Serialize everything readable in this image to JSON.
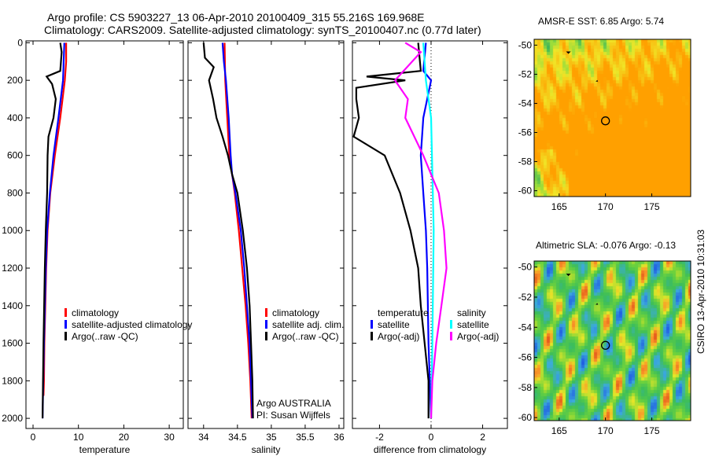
{
  "title": {
    "line1": "Argo profile: CS 5903227_13 06-Apr-2010 20100409_315 55.216S 169.968E",
    "line2": "Climatology: CARS2009. Satellite-adjusted climatology: synTS_20100407.nc (0.77d later)"
  },
  "stamp": "CSIRO 13-Apr-2010 10:31:03",
  "colors": {
    "climatology": "#ff0000",
    "satellite": "#0000ff",
    "argo": "#000000",
    "sal_satellite": "#00ffff",
    "sal_argo": "#ff00ff"
  },
  "chart_data": [
    {
      "type": "line",
      "id": "temperature",
      "xlabel": "temperature",
      "ylabel": "",
      "xlim": [
        -1.56,
        33.1
      ],
      "ylim": [
        2054,
        -10
      ],
      "xticks": [
        0,
        10,
        20,
        30
      ],
      "yticks": [
        0,
        200,
        400,
        600,
        800,
        1000,
        1200,
        1400,
        1600,
        1800,
        2000
      ],
      "legend": [
        "climatology",
        "satellite-adjusted climatology",
        "Argo(..raw -QC)"
      ],
      "series": [
        {
          "name": "climatology",
          "color": "#ff0000",
          "depth": [
            0,
            100,
            200,
            400,
            600,
            800,
            1000,
            1200,
            1400,
            1600,
            1800,
            1880
          ],
          "values": [
            7.3,
            7.3,
            7.0,
            6.0,
            4.8,
            3.8,
            3.2,
            2.9,
            2.7,
            2.5,
            2.4,
            2.3
          ]
        },
        {
          "name": "satellite-adjusted climatology",
          "color": "#0000ff",
          "depth": [
            0,
            200,
            400,
            600,
            800,
            1000,
            1200,
            1600,
            2000
          ],
          "values": [
            6.9,
            6.6,
            5.6,
            4.5,
            3.7,
            3.1,
            2.8,
            2.4,
            2.1
          ]
        },
        {
          "name": "Argo(..raw -QC)",
          "color": "#000000",
          "depth": [
            0,
            50,
            150,
            180,
            220,
            300,
            400,
            500,
            600,
            800,
            1000,
            1200,
            1600,
            2000
          ],
          "values": [
            6.0,
            6.3,
            6.0,
            3.0,
            4.2,
            5.0,
            4.5,
            3.4,
            3.2,
            3.1,
            2.8,
            2.6,
            2.3,
            2.1
          ]
        }
      ]
    },
    {
      "type": "line",
      "id": "salinity",
      "xlabel": "salinity",
      "xlim": [
        33.77,
        36.07
      ],
      "ylim": [
        2054,
        -10
      ],
      "xticks": [
        34,
        34.5,
        35,
        35.5,
        36
      ],
      "legend": [
        "climatology",
        "satellite adj. clim.",
        "Argo(..raw -QC)"
      ],
      "annotation": [
        "Argo AUSTRALIA",
        "PI: Susan Wijffels"
      ],
      "series": [
        {
          "name": "climatology",
          "color": "#ff0000",
          "depth": [
            0,
            200,
            400,
            600,
            700,
            800,
            1000,
            1200,
            1400,
            1600,
            1800,
            2000
          ],
          "values": [
            34.31,
            34.32,
            34.35,
            34.38,
            34.42,
            34.46,
            34.52,
            34.57,
            34.62,
            34.66,
            34.69,
            34.71
          ]
        },
        {
          "name": "satellite adj. clim.",
          "color": "#0000ff",
          "depth": [
            0,
            100,
            200,
            400,
            600,
            700,
            800,
            1000,
            1200,
            1400,
            1600,
            2000
          ],
          "values": [
            34.28,
            34.3,
            34.33,
            34.37,
            34.4,
            34.42,
            34.47,
            34.55,
            34.6,
            34.64,
            34.68,
            34.72
          ]
        },
        {
          "name": "Argo(..raw -QC)",
          "color": "#000000",
          "depth": [
            0,
            80,
            130,
            200,
            300,
            400,
            500,
            600,
            700,
            800,
            1000,
            1200,
            1400,
            1600,
            1800,
            2000
          ],
          "values": [
            34.0,
            34.02,
            34.15,
            34.08,
            34.14,
            34.19,
            34.28,
            34.36,
            34.42,
            34.5,
            34.58,
            34.64,
            34.68,
            34.7,
            34.72,
            34.73
          ]
        }
      ]
    },
    {
      "type": "line",
      "id": "difference",
      "xlabel": "difference from climatology",
      "xlim": [
        -3.05,
        2.96
      ],
      "ylim": [
        2054,
        -10
      ],
      "xticks": [
        -2,
        0,
        2
      ],
      "legend_left": {
        "title": "temperature",
        "items": [
          "satellite",
          "Argo(-adj)"
        ]
      },
      "legend_right": {
        "title": "salinity",
        "items": [
          "satellite",
          "Argo(-adj)"
        ]
      },
      "series": [
        {
          "name": "temperature satellite",
          "color": "#0000ff",
          "depth": [
            0,
            150,
            200,
            400,
            600,
            800,
            1000,
            1200,
            1600,
            2000
          ],
          "values": [
            -0.2,
            -0.3,
            0,
            -0.3,
            -0.4,
            -0.3,
            -0.2,
            -0.15,
            -0.1,
            0
          ]
        },
        {
          "name": "temperature Argo(-adj)",
          "color": "#000000",
          "depth": [
            0,
            150,
            180,
            200,
            240,
            300,
            400,
            500,
            600,
            800,
            1000,
            1200,
            1400,
            1800,
            2000
          ],
          "values": [
            -0.5,
            -0.4,
            -2.5,
            -1.0,
            -2.9,
            -2.9,
            -2.8,
            -3.0,
            -1.8,
            -1.2,
            -0.8,
            -0.5,
            -0.4,
            -0.1,
            -0.1
          ]
        },
        {
          "name": "salinity satellite",
          "color": "#00ffff",
          "depth": [
            0,
            200,
            400,
            1000,
            1600,
            2000
          ],
          "values": [
            -0.3,
            -0.2,
            0,
            0.1,
            0.05,
            0
          ]
        },
        {
          "name": "salinity Argo(-adj)",
          "color": "#ff00ff",
          "depth": [
            0,
            50,
            200,
            300,
            400,
            600,
            800,
            1000,
            1200,
            1400,
            1600,
            1800,
            2000
          ],
          "values": [
            -1.0,
            -0.4,
            -1.4,
            -0.9,
            -1.0,
            -0.3,
            0.3,
            0.5,
            0.6,
            0.4,
            0.2,
            0.05,
            0
          ]
        }
      ]
    },
    {
      "type": "heatmap",
      "id": "sst",
      "title": "AMSR-E SST: 6.85 Argo: 5.74",
      "xlim": [
        162.3,
        179.2
      ],
      "ylim": [
        -60.4,
        -49.6
      ],
      "xticks": [
        165,
        170,
        175
      ],
      "yticks": [
        -50,
        -52,
        -54,
        -56,
        -58,
        -60
      ],
      "marker": [
        170,
        -55.2
      ]
    },
    {
      "type": "heatmap",
      "id": "sla",
      "title": "Altimetric SLA: -0.076 Argo: -0.13",
      "xlim": [
        162.3,
        179.2
      ],
      "ylim": [
        -60.2,
        -49.6
      ],
      "xticks": [
        165,
        170,
        175
      ],
      "yticks": [
        -50,
        -52,
        -54,
        -56,
        -58,
        -60
      ],
      "marker": [
        170,
        -55.2
      ]
    }
  ]
}
